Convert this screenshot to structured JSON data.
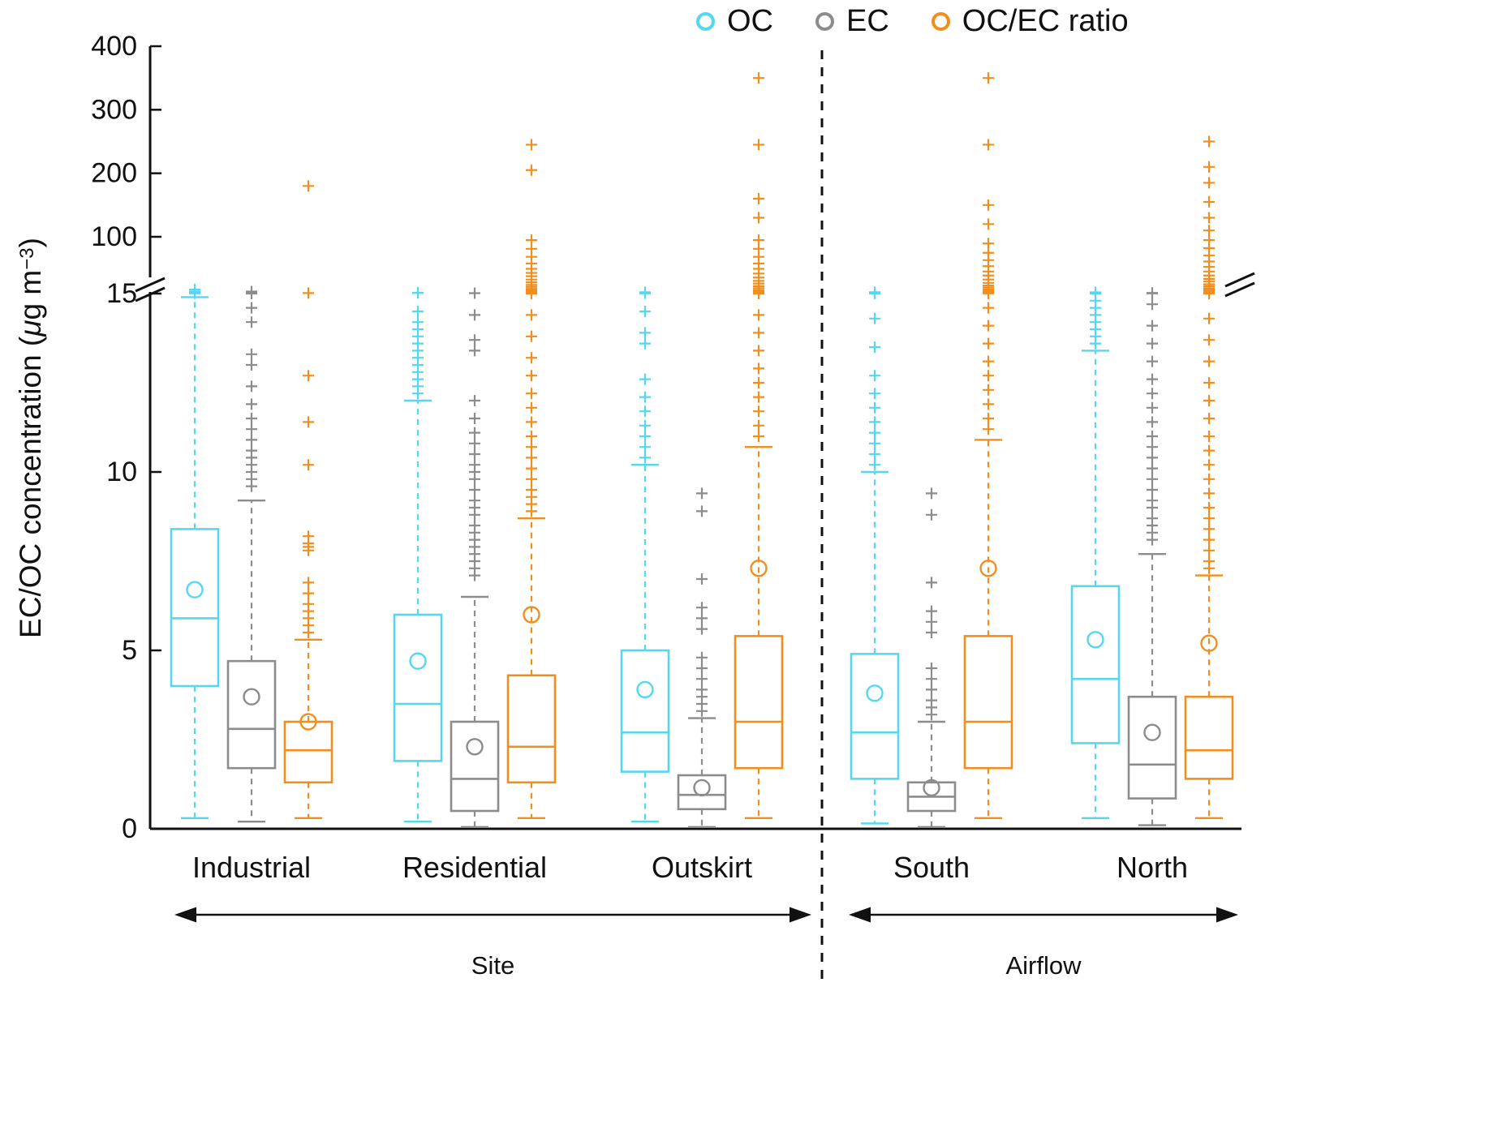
{
  "labels": {
    "y_axis_prefix": "EC/OC concentration (",
    "y_axis_mu": "μ",
    "y_axis_mid": "g m",
    "y_axis_sup": "−3",
    "y_axis_close": ")"
  },
  "chart_data": {
    "type": "boxplot",
    "title": "",
    "ylabel": "EC/OC concentration (μg m−3)",
    "y_axis": {
      "lower_ticks": [
        0,
        5,
        10,
        15
      ],
      "upper_ticks": [
        100,
        200,
        300,
        400
      ],
      "break_between": [
        15,
        100
      ],
      "lower_scale": "linear 0-15",
      "upper_scale": "linear 100-400"
    },
    "legend_position": "top-right",
    "series": [
      {
        "name": "OC",
        "color": "#55D7F0"
      },
      {
        "name": "EC",
        "color": "#8C8C8C"
      },
      {
        "name": "OC/EC ratio",
        "color": "#F28E1E"
      }
    ],
    "sections": [
      {
        "label": "Site",
        "groups": [
          "Industrial",
          "Residential",
          "Outskirt"
        ]
      },
      {
        "label": "Airflow",
        "groups": [
          "South",
          "North"
        ]
      }
    ],
    "groups": [
      {
        "label": "Industrial",
        "boxes": [
          {
            "series": "OC",
            "whisker_low": 0.3,
            "q1": 4.0,
            "median": 5.9,
            "q3": 8.4,
            "whisker_high": 14.9,
            "mean": 6.7,
            "outliers": [
              15.3,
              15.8,
              16.5,
              18,
              21
            ]
          },
          {
            "series": "EC",
            "whisker_low": 0.2,
            "q1": 1.7,
            "median": 2.8,
            "q3": 4.7,
            "whisker_high": 9.2,
            "mean": 3.7,
            "outliers": [
              9.6,
              9.8,
              10,
              10.2,
              10.4,
              10.6,
              10.9,
              11.2,
              11.5,
              11.9,
              12.4,
              13,
              13.3,
              14.2,
              14.6,
              15,
              15.6,
              16.5,
              18
            ]
          },
          {
            "series": "OC/EC ratio",
            "whisker_low": 0.3,
            "q1": 1.3,
            "median": 2.2,
            "q3": 3.0,
            "whisker_high": 5.3,
            "mean": 3.0,
            "outliers": [
              5.5,
              5.7,
              5.9,
              6.1,
              6.3,
              6.6,
              6.9,
              7.8,
              7.9,
              8.0,
              8.2,
              10.2,
              11.4,
              12.7,
              15.8,
              180
            ]
          }
        ]
      },
      {
        "label": "Residential",
        "boxes": [
          {
            "series": "OC",
            "whisker_low": 0.2,
            "q1": 1.9,
            "median": 3.5,
            "q3": 6.0,
            "whisker_high": 12.0,
            "mean": 4.7,
            "outliers": [
              12.2,
              12.4,
              12.6,
              12.8,
              13,
              13.2,
              13.4,
              13.6,
              13.8,
              14,
              14.2,
              14.5,
              15.9,
              16.3
            ]
          },
          {
            "series": "EC",
            "whisker_low": 0.05,
            "q1": 0.5,
            "median": 1.4,
            "q3": 3.0,
            "whisker_high": 6.5,
            "mean": 2.3,
            "outliers": [
              7.1,
              7.3,
              7.5,
              7.7,
              7.9,
              8.1,
              8.3,
              8.5,
              8.8,
              9,
              9.2,
              9.5,
              9.8,
              10,
              10.2,
              10.5,
              10.8,
              11.1,
              11.5,
              12,
              13.4,
              13.7,
              14.4,
              15.6
            ]
          },
          {
            "series": "OC/EC ratio",
            "whisker_low": 0.3,
            "q1": 1.3,
            "median": 2.3,
            "q3": 4.3,
            "whisker_high": 8.7,
            "mean": 6.0,
            "outliers": [
              8.9,
              9.1,
              9.3,
              9.5,
              9.8,
              10.1,
              10.4,
              10.7,
              11,
              11.4,
              11.8,
              12.2,
              12.7,
              13.2,
              13.8,
              14.4,
              15,
              15.7,
              16.4,
              18,
              20,
              22,
              25,
              28,
              32,
              36,
              41,
              46,
              52,
              60,
              70,
              82,
              95,
              205,
              245
            ]
          }
        ]
      },
      {
        "label": "Outskirt",
        "boxes": [
          {
            "series": "OC",
            "whisker_low": 0.2,
            "q1": 1.6,
            "median": 2.7,
            "q3": 5.0,
            "whisker_high": 10.2,
            "mean": 3.9,
            "outliers": [
              10.4,
              10.7,
              11,
              11.3,
              11.7,
              12.1,
              12.6,
              13.6,
              13.9,
              14.5,
              15.3,
              15.9,
              16.4,
              17
            ]
          },
          {
            "series": "EC",
            "whisker_low": 0.05,
            "q1": 0.55,
            "median": 0.95,
            "q3": 1.5,
            "whisker_high": 3.1,
            "mean": 1.15,
            "outliers": [
              3.3,
              3.5,
              3.7,
              3.9,
              4.2,
              4.5,
              4.8,
              5.6,
              5.9,
              6.2,
              7,
              8.9,
              9.4
            ]
          },
          {
            "series": "OC/EC ratio",
            "whisker_low": 0.3,
            "q1": 1.7,
            "median": 3.0,
            "q3": 5.4,
            "whisker_high": 10.7,
            "mean": 7.3,
            "outliers": [
              11,
              11.3,
              11.7,
              12.1,
              12.5,
              12.9,
              13.4,
              13.9,
              14.4,
              15,
              15.6,
              16.2,
              18,
              20,
              23,
              26,
              30,
              34,
              39,
              45,
              52,
              60,
              70,
              82,
              95,
              130,
              160,
              245,
              350
            ]
          }
        ]
      },
      {
        "label": "South",
        "boxes": [
          {
            "series": "OC",
            "whisker_low": 0.15,
            "q1": 1.4,
            "median": 2.7,
            "q3": 4.9,
            "whisker_high": 10.0,
            "mean": 3.8,
            "outliers": [
              10.2,
              10.5,
              10.8,
              11.1,
              11.4,
              11.8,
              12.2,
              12.7,
              13.5,
              14.3,
              15.1,
              15.7,
              16.3,
              17
            ]
          },
          {
            "series": "EC",
            "whisker_low": 0.05,
            "q1": 0.5,
            "median": 0.9,
            "q3": 1.3,
            "whisker_high": 3.0,
            "mean": 1.15,
            "outliers": [
              3.2,
              3.4,
              3.6,
              3.9,
              4.2,
              4.5,
              5.5,
              5.8,
              6.1,
              6.9,
              8.8,
              9.4
            ]
          },
          {
            "series": "OC/EC ratio",
            "whisker_low": 0.3,
            "q1": 1.7,
            "median": 3.0,
            "q3": 5.4,
            "whisker_high": 10.9,
            "mean": 7.3,
            "outliers": [
              11.2,
              11.5,
              11.9,
              12.3,
              12.7,
              13.1,
              13.6,
              14.1,
              14.6,
              15.2,
              15.8,
              16.5,
              17.5,
              19,
              21,
              24,
              27,
              31,
              36,
              42,
              48,
              56,
              65,
              76,
              90,
              120,
              150,
              245,
              350
            ]
          }
        ]
      },
      {
        "label": "North",
        "boxes": [
          {
            "series": "OC",
            "whisker_low": 0.3,
            "q1": 2.4,
            "median": 4.2,
            "q3": 6.8,
            "whisker_high": 13.4,
            "mean": 5.3,
            "outliers": [
              13.6,
              13.8,
              14,
              14.2,
              14.4,
              14.6,
              14.8,
              15,
              15.2,
              15.4,
              15.6,
              15.9,
              16.2,
              16.5,
              16.8
            ]
          },
          {
            "series": "EC",
            "whisker_low": 0.1,
            "q1": 0.85,
            "median": 1.8,
            "q3": 3.7,
            "whisker_high": 7.7,
            "mean": 2.7,
            "outliers": [
              8.1,
              8.3,
              8.5,
              8.7,
              9,
              9.2,
              9.5,
              9.8,
              10.1,
              10.4,
              10.7,
              11,
              11.4,
              11.8,
              12.2,
              12.6,
              13.1,
              13.6,
              14.1,
              14.7,
              15.3,
              15.9
            ]
          },
          {
            "series": "OC/EC ratio",
            "whisker_low": 0.3,
            "q1": 1.4,
            "median": 2.2,
            "q3": 3.7,
            "whisker_high": 7.1,
            "mean": 5.2,
            "outliers": [
              7.3,
              7.5,
              7.8,
              8.1,
              8.4,
              8.7,
              9,
              9.4,
              9.8,
              10.2,
              10.6,
              11,
              11.5,
              12,
              12.5,
              13.1,
              13.7,
              14.3,
              15,
              15.7,
              16.4,
              17,
              19,
              21,
              23,
              26,
              29,
              33,
              37,
              42,
              48,
              55,
              63,
              72,
              83,
              95,
              110,
              130,
              155,
              185,
              210,
              250
            ]
          }
        ]
      }
    ]
  }
}
